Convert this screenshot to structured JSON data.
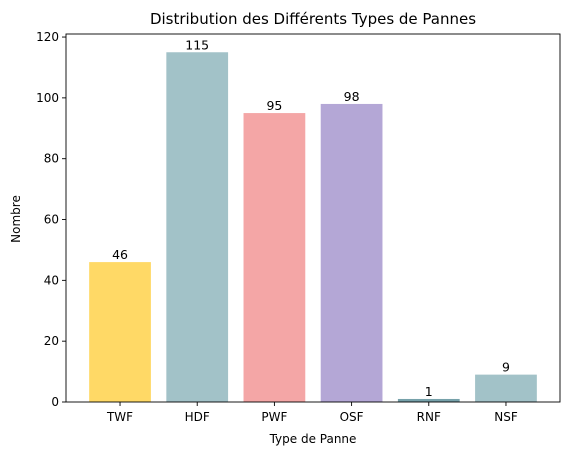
{
  "chart_data": {
    "type": "bar",
    "title": "Distribution des Différents Types de Pannes",
    "xlabel": "Type de Panne",
    "ylabel": "Nombre",
    "categories": [
      "TWF",
      "HDF",
      "PWF",
      "OSF",
      "RNF",
      "NSF"
    ],
    "values": [
      46,
      115,
      95,
      98,
      1,
      9
    ],
    "colors": [
      "#ffd966",
      "#a2c2c8",
      "#f4a6a6",
      "#b4a7d6",
      "#76a1aa",
      "#a2c2c8"
    ],
    "ylim": [
      0,
      121
    ],
    "yticks": [
      0,
      20,
      40,
      60,
      80,
      100,
      120
    ],
    "grid": false,
    "legend": "none"
  }
}
